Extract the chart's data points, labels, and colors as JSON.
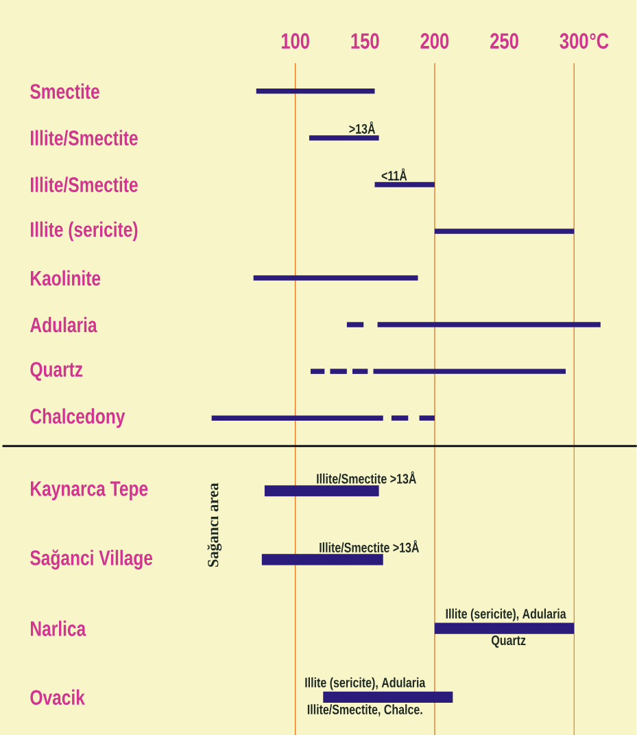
{
  "chart_data": [
    {
      "type": "bar",
      "orientation": "horizontal",
      "xlabel": "°C",
      "categories": [
        "Smectite",
        "Illite/Smectite",
        "Illite/Smectite",
        "Illite (sericite)",
        "Kaolinite",
        "Adularia",
        "Quartz",
        "Chalcedony"
      ],
      "series": [
        {
          "color": "#2b1b7b",
          "base": [
            72,
            110,
            157,
            200,
            70,
            137,
            111,
            40
          ],
          "values": [
            85,
            50,
            43,
            100,
            118,
            12,
            10,
            123
          ]
        },
        {
          "color": "#2b1b7b",
          "base": [
            null,
            null,
            null,
            null,
            null,
            159,
            125,
            169
          ],
          "values": [
            null,
            null,
            null,
            null,
            null,
            160,
            12,
            12
          ]
        },
        {
          "color": "#2b1b7b",
          "base": [
            null,
            null,
            null,
            null,
            null,
            null,
            141,
            189
          ],
          "values": [
            null,
            null,
            null,
            null,
            null,
            null,
            11,
            11
          ]
        },
        {
          "color": "#2b1b7b",
          "base": [
            null,
            null,
            null,
            null,
            null,
            null,
            156,
            null
          ],
          "values": [
            null,
            null,
            null,
            null,
            null,
            null,
            138,
            null
          ]
        }
      ],
      "xlim": [
        -110,
        345
      ],
      "xticks": [
        100,
        150,
        200,
        250,
        300
      ],
      "ref_lines": [
        {
          "axis": "x",
          "value": 100,
          "color": "#e8761e"
        },
        {
          "axis": "x",
          "value": 200,
          "color": "#e8761e"
        },
        {
          "axis": "x",
          "value": 300,
          "color": "#e8761e"
        }
      ],
      "annotations": [
        ">13Å",
        "<11Å"
      ]
    },
    {
      "type": "bar",
      "orientation": "horizontal",
      "categories": [
        "Kaynarca Tepe",
        "Sağanci Village",
        "Narlica",
        "Ovacik"
      ],
      "series": [
        {
          "color": "#2b1b7b",
          "base": [
            78,
            76,
            200,
            120
          ],
          "values": [
            82,
            87,
            100,
            93
          ]
        }
      ],
      "xlim": [
        -110,
        345
      ],
      "tick_labels": "y",
      "ref_lines": [
        {
          "axis": "x",
          "value": 100,
          "color": "#e8761e"
        },
        {
          "axis": "x",
          "value": 200,
          "color": "#e8761e"
        },
        {
          "axis": "x",
          "value": 300,
          "color": "#e8761e"
        }
      ],
      "annotations": [
        "Sağancı area",
        "Illite/Smectite >13Å",
        "Illite/Smectite >13Å",
        "Illite (sericite), Adularia",
        "Quartz",
        "Illite (sericite), Adularia",
        "Illite/Smectite, Chalce."
      ]
    }
  ]
}
